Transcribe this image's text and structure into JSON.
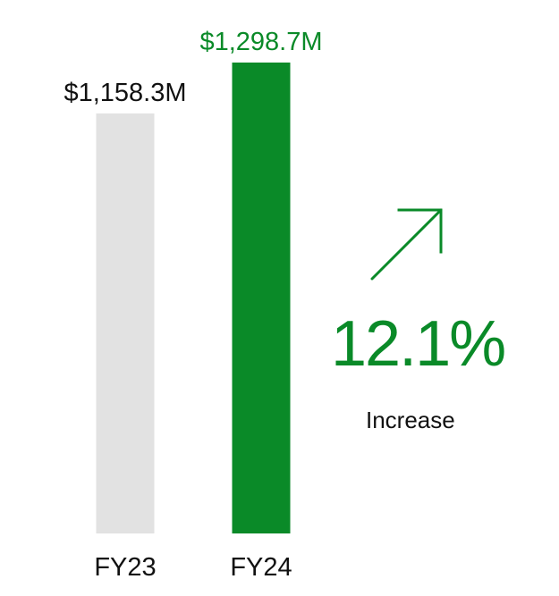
{
  "colors": {
    "fy23_bar": "#e2e2e2",
    "fy24_bar": "#0a8a28",
    "fy23_label": "#111111",
    "fy24_label": "#0a8a28",
    "accent": "#0a8a28"
  },
  "chart_data": {
    "type": "bar",
    "categories": [
      "FY23",
      "FY24"
    ],
    "values": [
      1158.3,
      1298.7
    ],
    "value_labels": [
      "$1,158.3M",
      "$1,298.7M"
    ],
    "title": "",
    "xlabel": "",
    "ylabel": "",
    "ylim": [
      0,
      1298.7
    ],
    "grid": false
  },
  "change": {
    "percent_label": "12.1%",
    "caption": "Increase",
    "direction_icon": "arrow-up-right-icon"
  }
}
